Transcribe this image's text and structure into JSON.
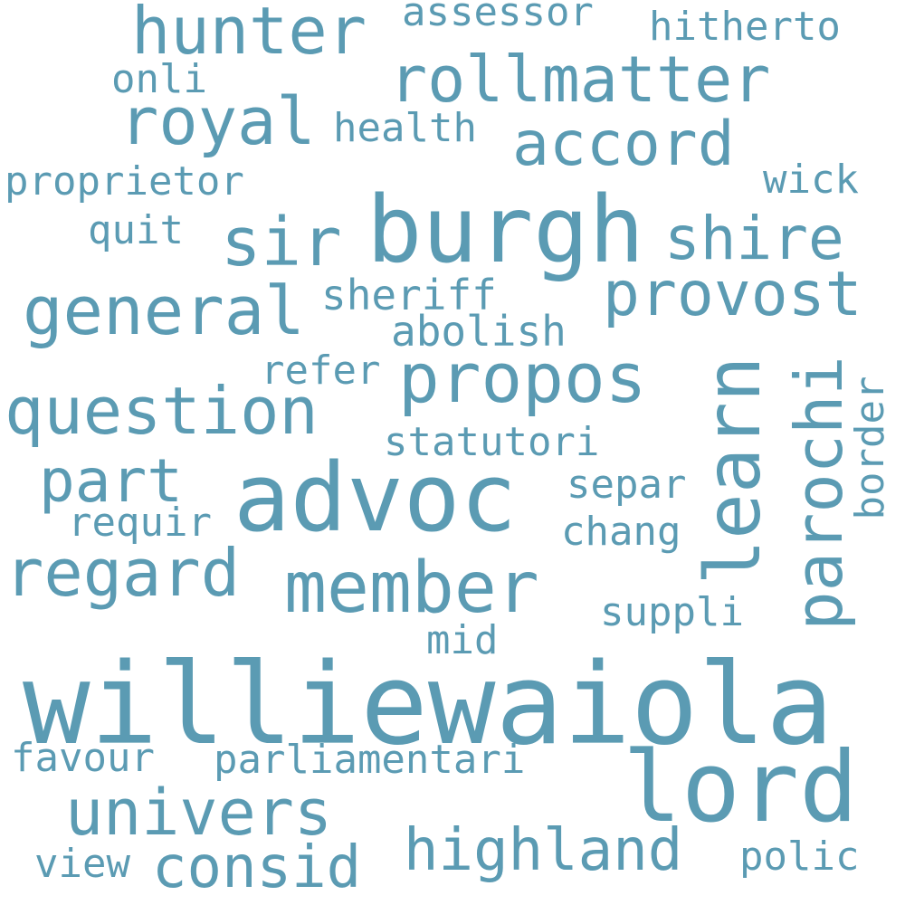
{
  "colors": {
    "background": "#ffffff",
    "word": "#5b9bb3"
  },
  "words": [
    "williewaiola",
    "advoc",
    "burgh",
    "lord",
    "member",
    "propos",
    "general",
    "question",
    "regard",
    "learn",
    "univers",
    "highland",
    "consid",
    "parochi",
    "provost",
    "rollmatter",
    "accord",
    "royal",
    "hunter",
    "sir",
    "shire",
    "part",
    "sheriff",
    "abolish",
    "refer",
    "statutori",
    "separ",
    "chang",
    "border",
    "requir",
    "suppli",
    "mid",
    "favour",
    "parliamentari",
    "view",
    "polic",
    "assessor",
    "hitherto",
    "onli",
    "health",
    "proprietor",
    "wick",
    "quit"
  ]
}
